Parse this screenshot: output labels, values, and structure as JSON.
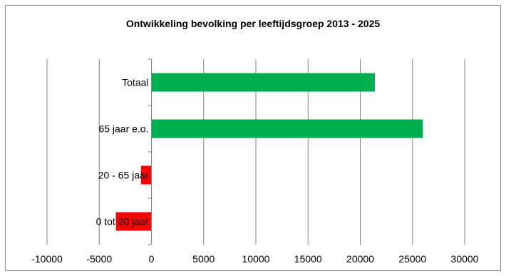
{
  "chart_data": {
    "type": "bar",
    "orientation": "horizontal",
    "title": "Ontwikkeling bevolking per leeftijdsgroep 2013 - 2025",
    "xlabel": "",
    "ylabel": "",
    "categories": [
      "0 tot 20 jaar",
      "20 - 65 jaar",
      "65 jaar e.o.",
      "Totaal"
    ],
    "values": [
      -3400,
      -1000,
      26000,
      21400
    ],
    "xlim": [
      -10000,
      30000
    ],
    "xticks": [
      "-10000",
      "-5000",
      "0",
      "5000",
      "10000",
      "15000",
      "20000",
      "25000",
      "30000"
    ],
    "xtick_values": [
      -10000,
      -5000,
      0,
      5000,
      10000,
      15000,
      20000,
      25000,
      30000
    ],
    "grid": "vertical",
    "legend": "none",
    "colors": {
      "positive": "#00b050",
      "negative": "#ff0000",
      "grid": "#808080",
      "axis": "#808080"
    }
  }
}
